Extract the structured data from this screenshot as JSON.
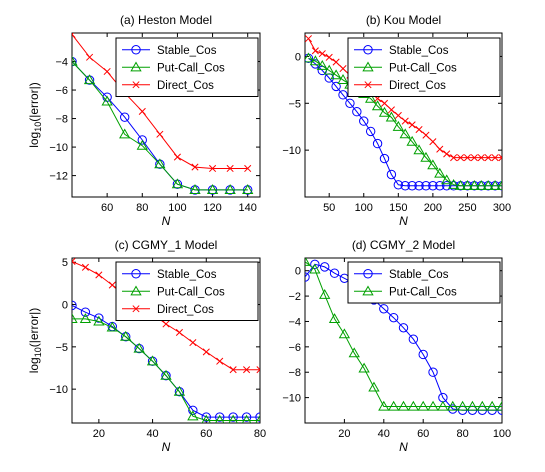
{
  "chart_data": [
    {
      "type": "line",
      "title": "(a) Heston Model",
      "xlabel": "N",
      "ylabel_main": "log",
      "ylabel_sub": "10",
      "ylabel_tail": "(|error|)",
      "xlim": [
        40,
        147
      ],
      "ylim": [
        -13.5,
        -2
      ],
      "xticks": [
        60,
        80,
        100,
        120,
        140
      ],
      "yticks": [
        -12,
        -10,
        -8,
        -6,
        -4
      ],
      "legend_position": "top-right",
      "series": [
        {
          "name": "Stable_Cos",
          "color": "#0000ff",
          "marker": "circle",
          "x": [
            40,
            50,
            60,
            70,
            80,
            90,
            100,
            110,
            120,
            130,
            140
          ],
          "y": [
            -4.0,
            -5.3,
            -6.5,
            -7.9,
            -9.5,
            -11.2,
            -12.6,
            -13.0,
            -13.0,
            -13.0,
            -13.0
          ]
        },
        {
          "name": "Put-Call_Cos",
          "color": "#00a000",
          "marker": "triangle",
          "x": [
            40,
            50,
            60,
            70,
            80,
            90,
            100,
            110,
            120,
            130,
            140
          ],
          "y": [
            -4.0,
            -5.3,
            -6.8,
            -9.1,
            -9.9,
            -11.2,
            -12.6,
            -13.0,
            -13.0,
            -13.0,
            -13.0
          ]
        },
        {
          "name": "Direct_Cos",
          "color": "#ff0000",
          "marker": "x",
          "x": [
            40,
            50,
            60,
            70,
            80,
            90,
            100,
            110,
            120,
            130,
            140
          ],
          "y": [
            -2.1,
            -3.7,
            -4.7,
            -6.2,
            -7.5,
            -9.1,
            -10.7,
            -11.4,
            -11.5,
            -11.5,
            -11.5
          ]
        }
      ]
    },
    {
      "type": "line",
      "title": "(b) Kou Model",
      "xlabel": "N",
      "ylabel_main": "",
      "ylabel_sub": "",
      "ylabel_tail": "",
      "xlim": [
        15,
        300
      ],
      "ylim": [
        -15,
        2.5
      ],
      "xticks": [
        50,
        100,
        150,
        200,
        250,
        300
      ],
      "yticks": [
        -10,
        -5,
        0
      ],
      "legend_position": "top-right",
      "series": [
        {
          "name": "Stable_Cos",
          "color": "#0000ff",
          "marker": "circle",
          "x": [
            20,
            30,
            40,
            50,
            60,
            70,
            80,
            90,
            100,
            110,
            120,
            130,
            140,
            150,
            160,
            170,
            180,
            190,
            200,
            210,
            220,
            230,
            240,
            250,
            260,
            270,
            280,
            290,
            300
          ],
          "y": [
            -0.2,
            -0.8,
            -1.5,
            -2.3,
            -3.2,
            -4.1,
            -5.0,
            -5.9,
            -6.9,
            -8.0,
            -9.3,
            -10.9,
            -12.6,
            -13.7,
            -13.8,
            -13.8,
            -13.8,
            -13.8,
            -13.8,
            -13.8,
            -13.8,
            -13.8,
            -13.8,
            -13.8,
            -13.8,
            -13.8,
            -13.8,
            -13.8,
            -13.8
          ]
        },
        {
          "name": "Put-Call_Cos",
          "color": "#00a000",
          "marker": "triangle",
          "x": [
            20,
            30,
            40,
            50,
            60,
            70,
            80,
            90,
            100,
            110,
            120,
            130,
            140,
            150,
            160,
            170,
            180,
            190,
            200,
            210,
            220,
            230,
            240,
            250,
            260,
            270,
            280,
            290,
            300
          ],
          "y": [
            -0.2,
            -0.5,
            -1.0,
            -1.5,
            -2.0,
            -2.5,
            -3.0,
            -3.5,
            -4.0,
            -4.5,
            -5.3,
            -6.0,
            -6.5,
            -7.5,
            -8.3,
            -9.1,
            -10.0,
            -10.8,
            -11.6,
            -12.5,
            -13.2,
            -13.7,
            -13.8,
            -13.8,
            -13.8,
            -13.8,
            -13.8,
            -13.8,
            -13.8
          ]
        },
        {
          "name": "Direct_Cos",
          "color": "#ff0000",
          "marker": "x",
          "x": [
            20,
            30,
            40,
            50,
            60,
            70,
            80,
            90,
            100,
            110,
            120,
            130,
            140,
            150,
            160,
            170,
            180,
            190,
            200,
            210,
            220,
            230,
            240,
            250,
            260,
            270,
            280,
            290,
            300
          ],
          "y": [
            1.9,
            0.6,
            0.3,
            -0.1,
            -0.6,
            -1.3,
            -2.0,
            -2.6,
            -3.2,
            -3.9,
            -4.5,
            -5.0,
            -5.7,
            -6.3,
            -6.9,
            -7.3,
            -7.8,
            -8.4,
            -9.1,
            -9.9,
            -10.4,
            -10.8,
            -10.8,
            -10.8,
            -10.8,
            -10.8,
            -10.8,
            -10.8,
            -10.8
          ]
        }
      ]
    },
    {
      "type": "line",
      "title": "(c) CGMY_1 Model",
      "xlabel": "N",
      "ylabel_main": "log",
      "ylabel_sub": "10",
      "ylabel_tail": "(|error|)",
      "xlim": [
        10,
        80
      ],
      "ylim": [
        -14,
        5.5
      ],
      "xticks": [
        20,
        40,
        60,
        80
      ],
      "yticks": [
        -10,
        -5,
        0,
        5
      ],
      "legend_position": "top-right",
      "series": [
        {
          "name": "Stable_Cos",
          "color": "#0000ff",
          "marker": "circle",
          "x": [
            10,
            15,
            20,
            25,
            30,
            35,
            40,
            45,
            50,
            55,
            60,
            65,
            70,
            75,
            80
          ],
          "y": [
            -0.1,
            -0.9,
            -1.6,
            -2.6,
            -3.8,
            -5.2,
            -6.7,
            -8.4,
            -10.3,
            -12.5,
            -13.3,
            -13.3,
            -13.3,
            -13.3,
            -13.3
          ]
        },
        {
          "name": "Put-Call_Cos",
          "color": "#00a000",
          "marker": "triangle",
          "x": [
            10,
            15,
            20,
            25,
            30,
            35,
            40,
            45,
            50,
            55,
            60,
            65,
            70,
            75,
            80
          ],
          "y": [
            -1.7,
            -1.7,
            -2.0,
            -2.7,
            -3.8,
            -5.2,
            -6.7,
            -8.4,
            -10.3,
            -13.2,
            -13.7,
            -13.7,
            -13.7,
            -13.7,
            -13.7
          ]
        },
        {
          "name": "Direct_Cos",
          "color": "#ff0000",
          "marker": "x",
          "x": [
            10,
            15,
            20,
            25,
            30,
            35,
            40,
            45,
            50,
            55,
            60,
            65,
            70,
            75,
            80
          ],
          "y": [
            5.1,
            4.4,
            3.5,
            2.3,
            1.2,
            0.1,
            -1.1,
            -2.3,
            -3.3,
            -4.5,
            -5.6,
            -6.7,
            -7.7,
            -7.7,
            -7.7
          ]
        }
      ]
    },
    {
      "type": "line",
      "title": "(d) CGMY_2 Model",
      "xlabel": "N",
      "ylabel_main": "",
      "ylabel_sub": "",
      "ylabel_tail": "",
      "xlim": [
        0,
        100
      ],
      "ylim": [
        -12,
        1
      ],
      "xticks": [
        20,
        40,
        60,
        80,
        100
      ],
      "yticks": [
        -10,
        -8,
        -6,
        -4,
        -2,
        0
      ],
      "legend_position": "top-right",
      "series": [
        {
          "name": "Stable_Cos",
          "color": "#0000ff",
          "marker": "circle",
          "x": [
            0,
            5,
            10,
            15,
            20,
            25,
            30,
            35,
            40,
            45,
            50,
            55,
            60,
            65,
            70,
            75,
            80,
            85,
            90,
            95,
            100
          ],
          "y": [
            -0.5,
            0.5,
            0.3,
            -0.2,
            -0.6,
            -1.0,
            -1.7,
            -2.3,
            -3.0,
            -3.7,
            -4.5,
            -5.4,
            -6.6,
            -8.0,
            -10.0,
            -10.9,
            -11.0,
            -11.0,
            -11.0,
            -11.0,
            -11.0
          ]
        },
        {
          "name": "Put-Call_Cos",
          "color": "#00a000",
          "marker": "triangle",
          "x": [
            0,
            5,
            10,
            15,
            20,
            25,
            30,
            35,
            40,
            45,
            50,
            55,
            60,
            65,
            70,
            75,
            80,
            85,
            90,
            95,
            100
          ],
          "y": [
            0.7,
            0.1,
            -1.9,
            -3.8,
            -5.0,
            -6.5,
            -7.7,
            -9.2,
            -10.7,
            -10.7,
            -10.7,
            -10.7,
            -10.7,
            -10.7,
            -10.7,
            -10.7,
            -10.7,
            -10.7,
            -10.7,
            -10.7,
            -10.7
          ]
        }
      ]
    }
  ]
}
